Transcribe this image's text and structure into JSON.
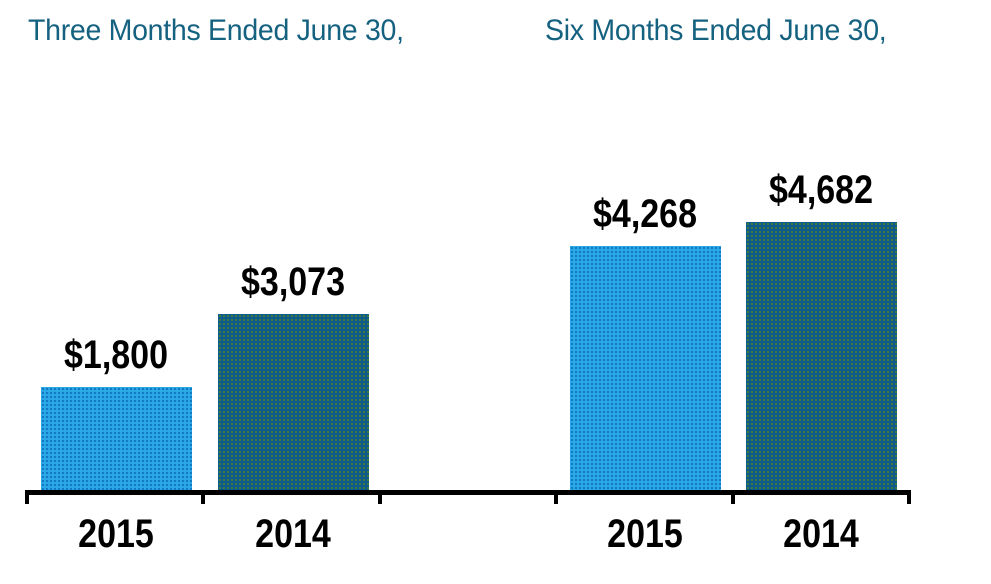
{
  "page": {
    "background": "#ffffff"
  },
  "colors": {
    "title_text": "#156180",
    "label_text": "#000000",
    "axis": "#000000",
    "bar_light_fill": "#2BAAE6",
    "bar_light_dot": "#1377C4",
    "bar_dark_fill": "#0B5A8C",
    "bar_dark_dot": "#3E7B44"
  },
  "chart_data": {
    "type": "bar",
    "value_prefix": "$",
    "ylim": [
      0,
      5000
    ],
    "grid": false,
    "legend": "none",
    "x_axis": {
      "tick_count": 6,
      "baseline": true
    },
    "groups": [
      {
        "title": "Three Months Ended June 30,",
        "bars": [
          {
            "category": "2015",
            "value": 1800,
            "value_label": "$1,800",
            "color": "light"
          },
          {
            "category": "2014",
            "value": 3073,
            "value_label": "$3,073",
            "color": "dark"
          }
        ]
      },
      {
        "title": "Six Months Ended June 30,",
        "bars": [
          {
            "category": "2015",
            "value": 4268,
            "value_label": "$4,268",
            "color": "light"
          },
          {
            "category": "2014",
            "value": 4682,
            "value_label": "$4,682",
            "color": "dark"
          }
        ]
      }
    ]
  }
}
